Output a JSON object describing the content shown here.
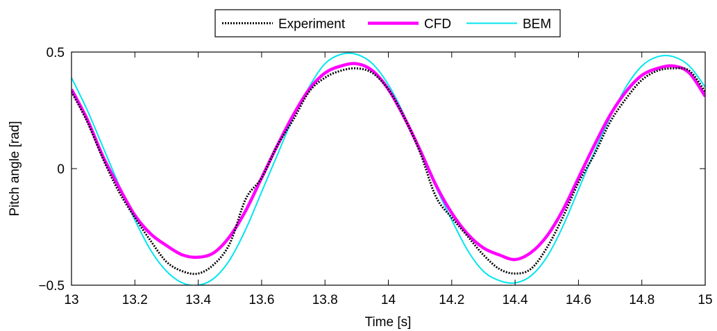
{
  "chart_data": {
    "type": "line",
    "xlabel": "Time [s]",
    "ylabel": "Pitch angle [rad]",
    "xlim": [
      13,
      15
    ],
    "ylim": [
      -0.5,
      0.5
    ],
    "xticks": [
      13,
      13.2,
      13.4,
      13.6,
      13.8,
      14,
      14.2,
      14.4,
      14.6,
      14.8,
      15
    ],
    "xtick_labels": [
      "13",
      "13.2",
      "13.4",
      "13.6",
      "13.8",
      "14",
      "14.2",
      "14.4",
      "14.6",
      "14.8",
      "15"
    ],
    "yticks": [
      0.5,
      0,
      -0.5
    ],
    "ytick_labels": [
      "0.5",
      "0",
      "−0.5"
    ],
    "grid": false,
    "legend_position": "top-center",
    "x": [
      13.0,
      13.05,
      13.1,
      13.15,
      13.2,
      13.25,
      13.3,
      13.35,
      13.4,
      13.45,
      13.5,
      13.55,
      13.6,
      13.65,
      13.7,
      13.75,
      13.8,
      13.85,
      13.9,
      13.95,
      14.0,
      14.05,
      14.1,
      14.15,
      14.2,
      14.25,
      14.3,
      14.35,
      14.4,
      14.45,
      14.5,
      14.55,
      14.6,
      14.65,
      14.7,
      14.75,
      14.8,
      14.85,
      14.9,
      14.95,
      15.0
    ],
    "series": [
      {
        "name": "Experiment",
        "color": "#000000",
        "style": "dotted",
        "values": [
          0.33,
          0.2,
          0.04,
          -0.1,
          -0.21,
          -0.31,
          -0.4,
          -0.44,
          -0.45,
          -0.41,
          -0.32,
          -0.13,
          -0.04,
          0.1,
          0.21,
          0.33,
          0.39,
          0.42,
          0.43,
          0.41,
          0.34,
          0.22,
          0.07,
          -0.12,
          -0.21,
          -0.29,
          -0.37,
          -0.43,
          -0.45,
          -0.43,
          -0.34,
          -0.21,
          -0.06,
          0.06,
          0.2,
          0.3,
          0.38,
          0.42,
          0.43,
          0.42,
          0.33
        ]
      },
      {
        "name": "CFD",
        "color": "#ff00ff",
        "style": "solid",
        "values": [
          0.34,
          0.21,
          0.05,
          -0.08,
          -0.2,
          -0.28,
          -0.33,
          -0.37,
          -0.38,
          -0.36,
          -0.29,
          -0.18,
          -0.04,
          0.1,
          0.23,
          0.34,
          0.41,
          0.44,
          0.45,
          0.42,
          0.34,
          0.22,
          0.08,
          -0.07,
          -0.19,
          -0.28,
          -0.34,
          -0.37,
          -0.39,
          -0.36,
          -0.29,
          -0.18,
          -0.04,
          0.1,
          0.23,
          0.33,
          0.4,
          0.43,
          0.44,
          0.41,
          0.31
        ]
      },
      {
        "name": "BEM",
        "color": "#00e5ee",
        "style": "solid",
        "values": [
          0.39,
          0.25,
          0.09,
          -0.07,
          -0.22,
          -0.35,
          -0.44,
          -0.49,
          -0.5,
          -0.47,
          -0.39,
          -0.26,
          -0.1,
          0.06,
          0.22,
          0.35,
          0.45,
          0.49,
          0.49,
          0.45,
          0.36,
          0.23,
          0.07,
          -0.08,
          -0.22,
          -0.35,
          -0.44,
          -0.48,
          -0.49,
          -0.46,
          -0.38,
          -0.25,
          -0.09,
          0.07,
          0.22,
          0.35,
          0.44,
          0.48,
          0.48,
          0.44,
          0.35
        ]
      }
    ]
  }
}
